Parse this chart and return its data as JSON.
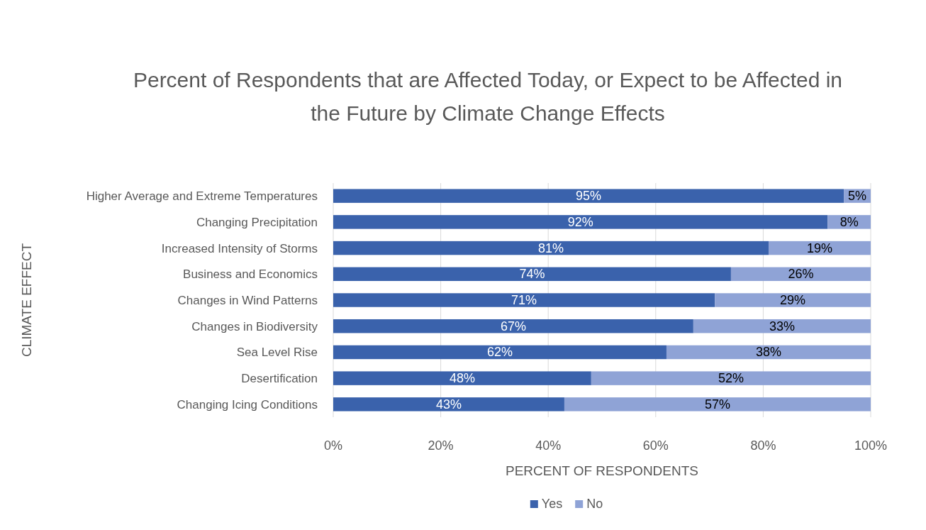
{
  "chart_data": {
    "type": "bar",
    "orientation": "horizontal",
    "stacked": true,
    "title": "Percent of Respondents that are Affected Today, or Expect to be Affected in the Future by Climate Change Effects",
    "xlabel": "PERCENT OF RESPONDENTS",
    "ylabel": "CLIMATE EFFECT",
    "categories": [
      "Higher Average and Extreme Temperatures",
      "Changing Precipitation",
      "Increased Intensity of Storms",
      "Business and Economics",
      "Changes in Wind Patterns",
      "Changes in Biodiversity",
      "Sea Level Rise",
      "Desertification",
      "Changing Icing Conditions"
    ],
    "series": [
      {
        "name": "Yes",
        "color": "#3a62ac",
        "values": [
          95,
          92,
          81,
          74,
          71,
          67,
          62,
          48,
          43
        ],
        "value_labels": [
          "95%",
          "92%",
          "81%",
          "74%",
          "71%",
          "67%",
          "62%",
          "48%",
          "43%"
        ]
      },
      {
        "name": "No",
        "color": "#8fa3d6",
        "values": [
          5,
          8,
          19,
          26,
          29,
          33,
          38,
          52,
          57
        ],
        "value_labels": [
          "5%",
          "8%",
          "19%",
          "26%",
          "29%",
          "33%",
          "38%",
          "52%",
          "57%"
        ]
      }
    ],
    "xlim": [
      0,
      100
    ],
    "xticks": [
      {
        "value": 0,
        "label": "0%"
      },
      {
        "value": 20,
        "label": "20%"
      },
      {
        "value": 40,
        "label": "40%"
      },
      {
        "value": 60,
        "label": "60%"
      },
      {
        "value": 80,
        "label": "80%"
      },
      {
        "value": 100,
        "label": "100%"
      }
    ],
    "grid": "x",
    "legend": "bottom"
  }
}
